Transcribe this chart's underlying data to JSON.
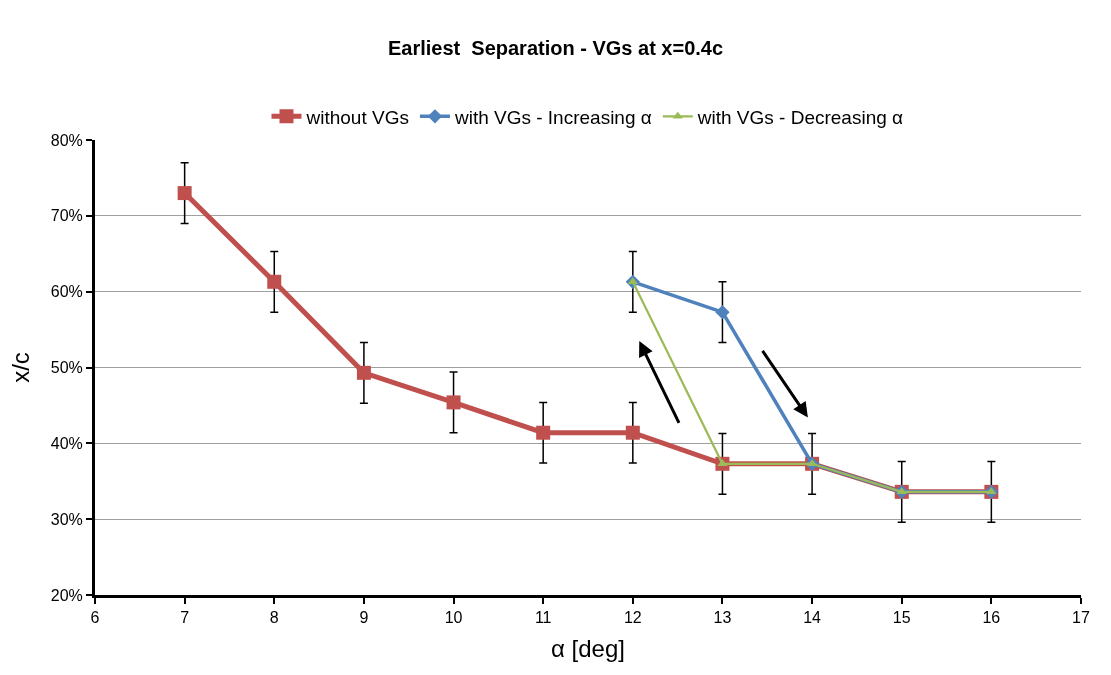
{
  "chart_data": {
    "type": "line",
    "title": "Earliest  Separation - VGs at x=0.4c",
    "xlabel": "α [deg]",
    "ylabel": "x/c",
    "xlim": [
      6,
      17
    ],
    "xticks": [
      6,
      7,
      8,
      9,
      10,
      11,
      12,
      13,
      14,
      15,
      16,
      17
    ],
    "ylim": [
      20,
      80
    ],
    "yticks": [
      {
        "value": 20,
        "label": "20%"
      },
      {
        "value": 30,
        "label": "30%"
      },
      {
        "value": 40,
        "label": "40%"
      },
      {
        "value": 50,
        "label": "50%"
      },
      {
        "value": 60,
        "label": "60%"
      },
      {
        "value": 70,
        "label": "70%"
      },
      {
        "value": 80,
        "label": "80%"
      }
    ],
    "grid": "y",
    "legend": "top",
    "series": [
      {
        "name": "without VGs",
        "color": "#c0504d",
        "marker": "square",
        "x": [
          7,
          8,
          9,
          10,
          11,
          12,
          13,
          14,
          15,
          16
        ],
        "values": [
          73,
          61.3,
          49.3,
          45.4,
          41.4,
          41.4,
          37.3,
          37.3,
          33.6,
          33.6
        ],
        "errors": [
          4,
          4,
          4,
          4,
          4,
          4,
          4,
          4,
          4,
          4
        ]
      },
      {
        "name": "with VGs - Increasing α",
        "color": "#4f81bd",
        "marker": "diamond",
        "x": [
          12,
          13,
          14,
          15,
          16
        ],
        "values": [
          61.3,
          57.3,
          37.3,
          33.6,
          33.6
        ],
        "errors": [
          4,
          4,
          null,
          null,
          null
        ]
      },
      {
        "name": "with VGs - Decreasing α",
        "color": "#9bbb59",
        "marker": "triangle",
        "x": [
          12,
          13,
          14,
          15,
          16
        ],
        "values": [
          61.3,
          37.3,
          37.3,
          33.6,
          33.6
        ]
      }
    ]
  }
}
